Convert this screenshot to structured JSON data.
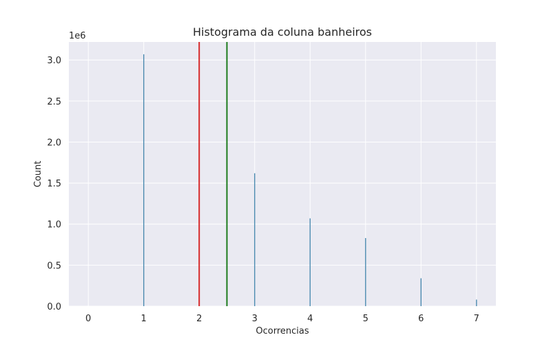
{
  "chart_data": {
    "type": "bar",
    "title": "Histograma da coluna banheiros",
    "xlabel": "Ocorrencias",
    "ylabel": "Count",
    "y_scale_label": "1e6",
    "xlim": [
      -0.35,
      7.35
    ],
    "ylim": [
      0,
      3.22
    ],
    "x_ticks": [
      0,
      1,
      2,
      3,
      4,
      5,
      6,
      7
    ],
    "y_ticks": [
      0.0,
      0.5,
      1.0,
      1.5,
      2.0,
      2.5,
      3.0
    ],
    "y_tick_labels": [
      "0.0",
      "0.5",
      "1.0",
      "1.5",
      "2.0",
      "2.5",
      "3.0"
    ],
    "grid": true,
    "bars": {
      "x": [
        1,
        2,
        3,
        4,
        5,
        6,
        7
      ],
      "values": [
        3.07,
        2.76,
        1.62,
        1.07,
        0.83,
        0.34,
        0.08
      ],
      "color": "#4c8bb0"
    },
    "reference_lines": [
      {
        "x": 2.0,
        "color": "#d62728"
      },
      {
        "x": 2.5,
        "color": "#1a7a1a"
      }
    ],
    "background_color": "#eaeaf2",
    "grid_color": "#ffffff"
  }
}
